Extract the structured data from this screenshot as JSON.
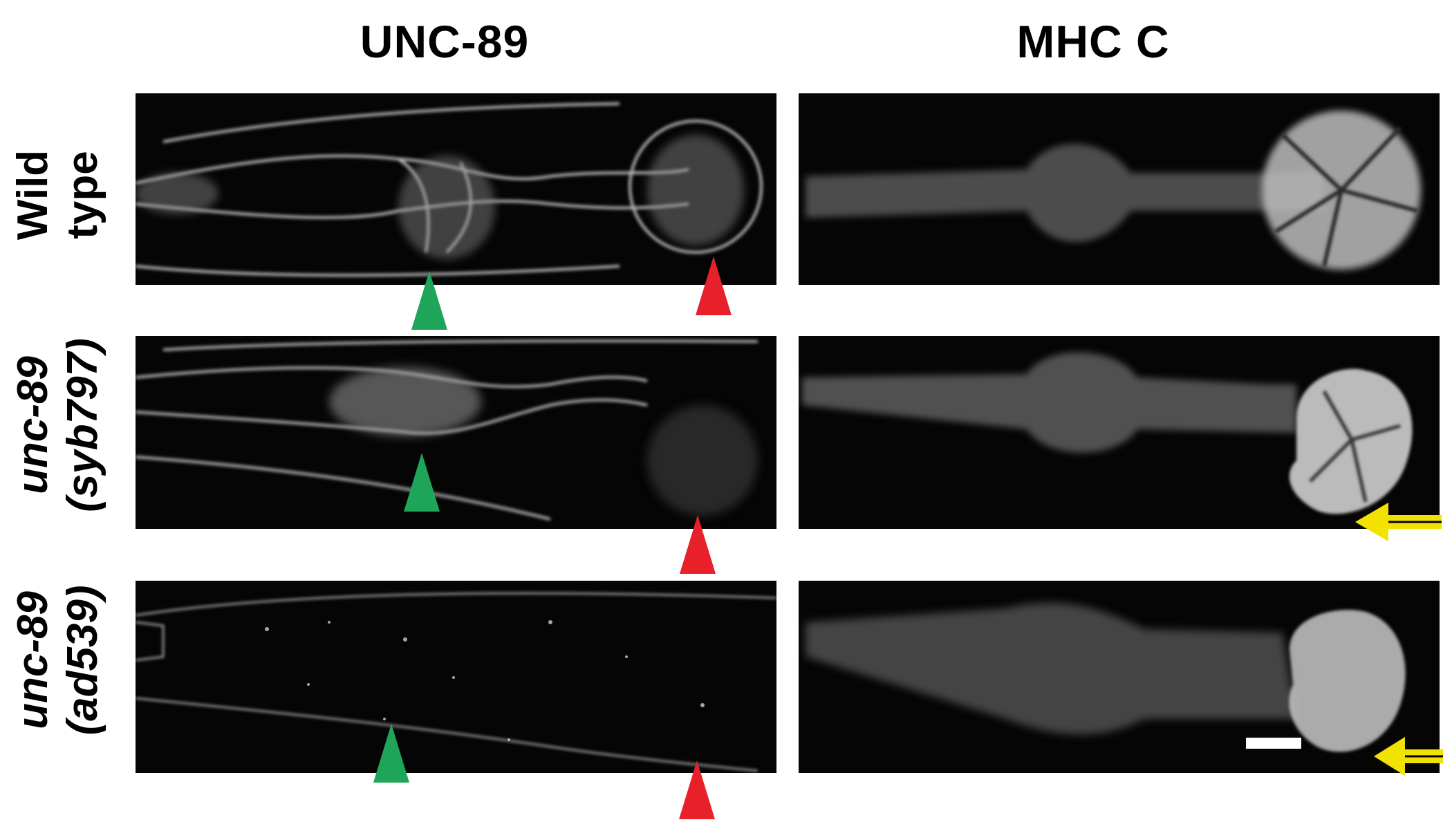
{
  "columns": {
    "left_title": "UNC-89",
    "right_title": "MHC C"
  },
  "rows": [
    {
      "line1": "Wild",
      "line2": "type"
    },
    {
      "line1": "unc-89",
      "line2": "(syb797)"
    },
    {
      "line1": "unc-89",
      "line2": "(ad539)"
    }
  ],
  "markers": {
    "green_arrowhead_color": "#1fa55a",
    "red_arrowhead_color": "#e8202a",
    "yellow_arrow_color": "#f2e200"
  },
  "scale_bar": "white"
}
